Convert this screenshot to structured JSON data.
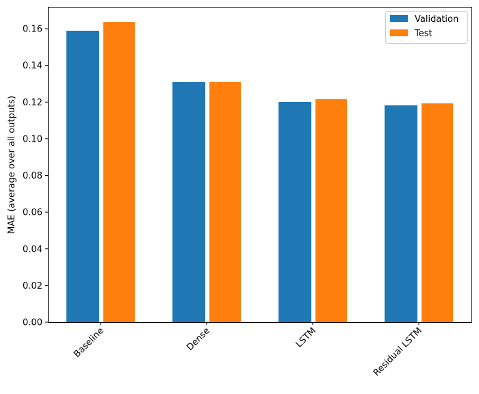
{
  "chart_data": {
    "type": "bar",
    "title": "",
    "xlabel": "",
    "ylabel": "MAE (average over all outputs)",
    "categories": [
      "Baseline",
      "Dense",
      "LSTM",
      "Residual LSTM"
    ],
    "series": [
      {
        "name": "Validation",
        "color": "#1f77b4",
        "values": [
          0.1589,
          0.1309,
          0.1201,
          0.1182
        ]
      },
      {
        "name": "Test",
        "color": "#ff7f0e",
        "values": [
          0.1637,
          0.1309,
          0.1216,
          0.1193
        ]
      }
    ],
    "ylim": [
      0,
      0.172
    ],
    "yticks": [
      "0.00",
      "0.02",
      "0.04",
      "0.06",
      "0.08",
      "0.10",
      "0.12",
      "0.14",
      "0.16"
    ],
    "grid": false,
    "legend": "top-right",
    "xtick_rotation": 45
  }
}
